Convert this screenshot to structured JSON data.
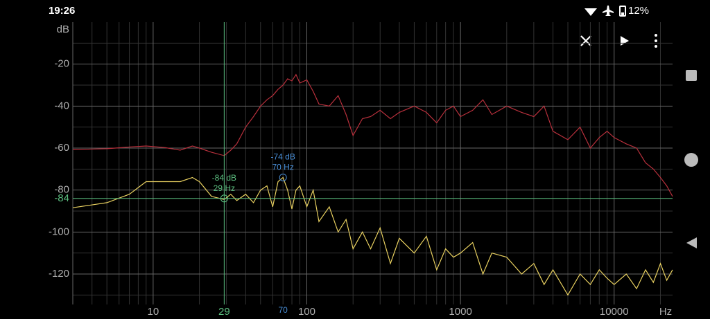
{
  "status_bar": {
    "time": "19:26",
    "battery": "12%"
  },
  "chart_data": {
    "type": "line",
    "xscale": "log",
    "grid": true,
    "ylabel": "dB",
    "xlabel": "Hz",
    "xlim": [
      3,
      24000
    ],
    "ylim": [
      -134.5,
      0
    ],
    "xticks": [
      10,
      100,
      1000,
      10000
    ],
    "yticks": [
      -20,
      -40,
      -60,
      -80,
      -100,
      -120
    ],
    "xminor": [
      4,
      5,
      6,
      7,
      8,
      9,
      20,
      30,
      40,
      50,
      60,
      70,
      80,
      90,
      200,
      300,
      400,
      500,
      600,
      700,
      800,
      900,
      2000,
      3000,
      4000,
      5000,
      6000,
      7000,
      8000,
      9000,
      20000
    ],
    "yminor": [
      -10,
      -30,
      -50,
      -70,
      -90,
      -110,
      -130
    ],
    "x": [
      3,
      5,
      7,
      9,
      12,
      15,
      18,
      20,
      24,
      29,
      32,
      35,
      40,
      45,
      50,
      55,
      60,
      65,
      70,
      75,
      80,
      85,
      90,
      100,
      110,
      120,
      140,
      160,
      180,
      200,
      230,
      260,
      300,
      350,
      400,
      500,
      600,
      700,
      800,
      900,
      1000,
      1200,
      1400,
      1600,
      2000,
      2500,
      3000,
      3500,
      4000,
      5000,
      6000,
      7000,
      8000,
      9000,
      10000,
      12000,
      14000,
      16000,
      18000,
      20000,
      22000,
      24000
    ],
    "series": [
      {
        "color": "#b8303c",
        "values": [
          -60.7,
          -60.3,
          -59.5,
          -59,
          -59.8,
          -61,
          -59,
          -60,
          -62,
          -63.6,
          -61,
          -58,
          -50,
          -45,
          -40,
          -37,
          -35,
          -32,
          -30,
          -27,
          -28,
          -25,
          -29,
          -27.5,
          -33,
          -39,
          -40,
          -35,
          -44,
          -54,
          -46,
          -45,
          -42,
          -46,
          -43,
          -40,
          -43,
          -48,
          -42,
          -40,
          -45,
          -42,
          -37,
          -44,
          -40,
          -43,
          -45,
          -40,
          -52,
          -56,
          -50,
          -60,
          -55,
          -52,
          -55,
          -58,
          -60,
          -67,
          -70,
          -74,
          -78,
          -83
        ]
      },
      {
        "color": "#e8d060",
        "values": [
          -88.4,
          -86,
          -82,
          -76,
          -76,
          -76,
          -74,
          -76,
          -83,
          -84.5,
          -82,
          -85,
          -82,
          -86,
          -80,
          -78,
          -88,
          -76,
          -74,
          -80,
          -89,
          -80,
          -78,
          -88,
          -80,
          -95,
          -88,
          -100,
          -94,
          -108,
          -100,
          -108,
          -98,
          -115,
          -103,
          -110,
          -102,
          -118,
          -108,
          -112,
          -110,
          -105,
          -120,
          -110,
          -112,
          -120,
          -115,
          -125,
          -118,
          -130,
          -120,
          -125,
          -118,
          -122,
          -125,
          -120,
          -127,
          -118,
          -124,
          -115,
          -123,
          -118
        ]
      }
    ],
    "cursor": {
      "x": 29,
      "y": -84,
      "text": [
        "-84 dB",
        "29 Hz"
      ],
      "color": "#5cbf80"
    },
    "peak": {
      "x": 70,
      "y": -74,
      "text": [
        "-74 dB",
        "70 Hz"
      ],
      "color": "#4a90d9"
    }
  }
}
